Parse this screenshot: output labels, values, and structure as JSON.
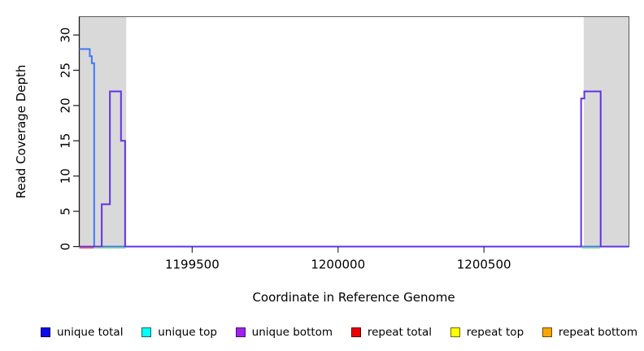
{
  "chart_data": {
    "type": "line",
    "subtype": "step-coverage",
    "title": "",
    "xlabel": "Coordinate in Reference Genome",
    "ylabel": "Read Coverage Depth",
    "xlim": [
      1199113,
      1200997
    ],
    "ylim": [
      0,
      32.6
    ],
    "x_ticks": [
      1199500,
      1200000,
      1200500
    ],
    "y_ticks": [
      0,
      5,
      10,
      15,
      20,
      25,
      30
    ],
    "grid": false,
    "legend_position": "bottom",
    "repeat_region_shading": {
      "color": "#d9d9d9",
      "regions": [
        [
          1199113,
          1199274
        ],
        [
          1200842,
          1200997
        ]
      ]
    },
    "series": [
      {
        "name": "unique total",
        "color": "#4377f6",
        "width": 2,
        "steps": [
          [
            1199113,
            28
          ],
          [
            1199149,
            27
          ],
          [
            1199156,
            26
          ],
          [
            1199164,
            0
          ]
        ]
      },
      {
        "name": "unique bottom",
        "color": "#6231e8",
        "width": 2,
        "steps": [
          [
            1199113,
            0
          ],
          [
            1199190,
            6
          ],
          [
            1199218,
            22
          ],
          [
            1199256,
            15
          ],
          [
            1199270,
            0
          ],
          [
            1200833,
            21
          ],
          [
            1200844,
            22
          ],
          [
            1200900,
            0
          ]
        ]
      }
    ],
    "baseline_segments": [
      {
        "name": "repeat coverage at zero (left)",
        "color": "#e05f62",
        "range": [
          1199113,
          1199164
        ]
      },
      {
        "name": "overlap coverage at zero (left)",
        "color": "#8fd88f",
        "range": [
          1199166,
          1199272
        ]
      },
      {
        "name": "overlap coverage at zero (right)",
        "color": "#8fd88f",
        "range": [
          1200836,
          1200898
        ]
      }
    ]
  },
  "legend": {
    "items": [
      {
        "label": "unique total",
        "fill": "#0a0af0",
        "border": "#000050"
      },
      {
        "label": "unique top",
        "fill": "#00ffff",
        "border": "#006868"
      },
      {
        "label": "unique bottom",
        "fill": "#a020f0",
        "border": "#4c0a70"
      },
      {
        "label": "repeat total",
        "fill": "#ee0000",
        "border": "#600000"
      },
      {
        "label": "repeat top",
        "fill": "#ffff00",
        "border": "#6a6a00"
      },
      {
        "label": "repeat bottom",
        "fill": "#ffa500",
        "border": "#6e4700"
      }
    ]
  }
}
